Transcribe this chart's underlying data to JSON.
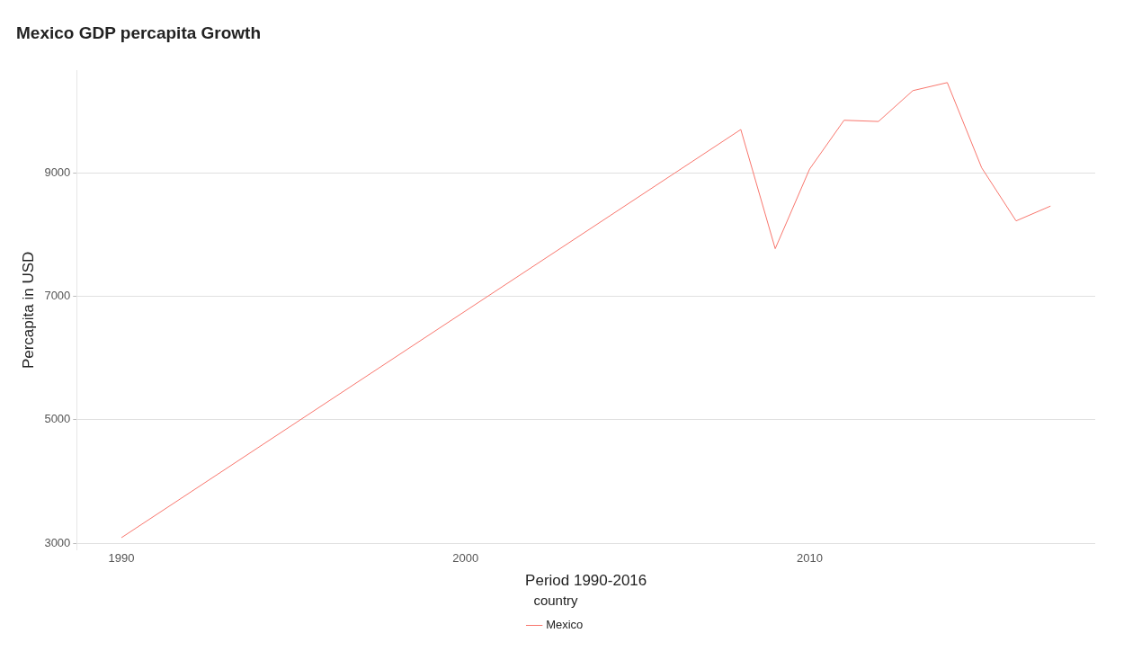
{
  "chart_data": {
    "type": "line",
    "title": "Mexico GDP percapita Growth",
    "xlabel": "Period 1990-2016",
    "ylabel": "Percapita in USD",
    "legend_title": "country",
    "series": [
      {
        "name": "Mexico",
        "color": "#f8766d",
        "x": [
          1990,
          2008,
          2009,
          2010,
          2011,
          2012,
          2013,
          2014,
          2015,
          2016,
          2017
        ],
        "values": [
          3090,
          9700,
          7770,
          9060,
          9850,
          9830,
          10330,
          10460,
          9080,
          8220,
          8460
        ]
      }
    ],
    "xlim": [
      1988.7,
      2018.3
    ],
    "xticks": [
      1990,
      2000,
      2010
    ],
    "yticks": [
      3000,
      5000,
      7000,
      9000
    ],
    "ylim": [
      2900,
      10650
    ],
    "grid": "y",
    "legend": "bottom",
    "marker": "none",
    "line_style": "solid"
  }
}
